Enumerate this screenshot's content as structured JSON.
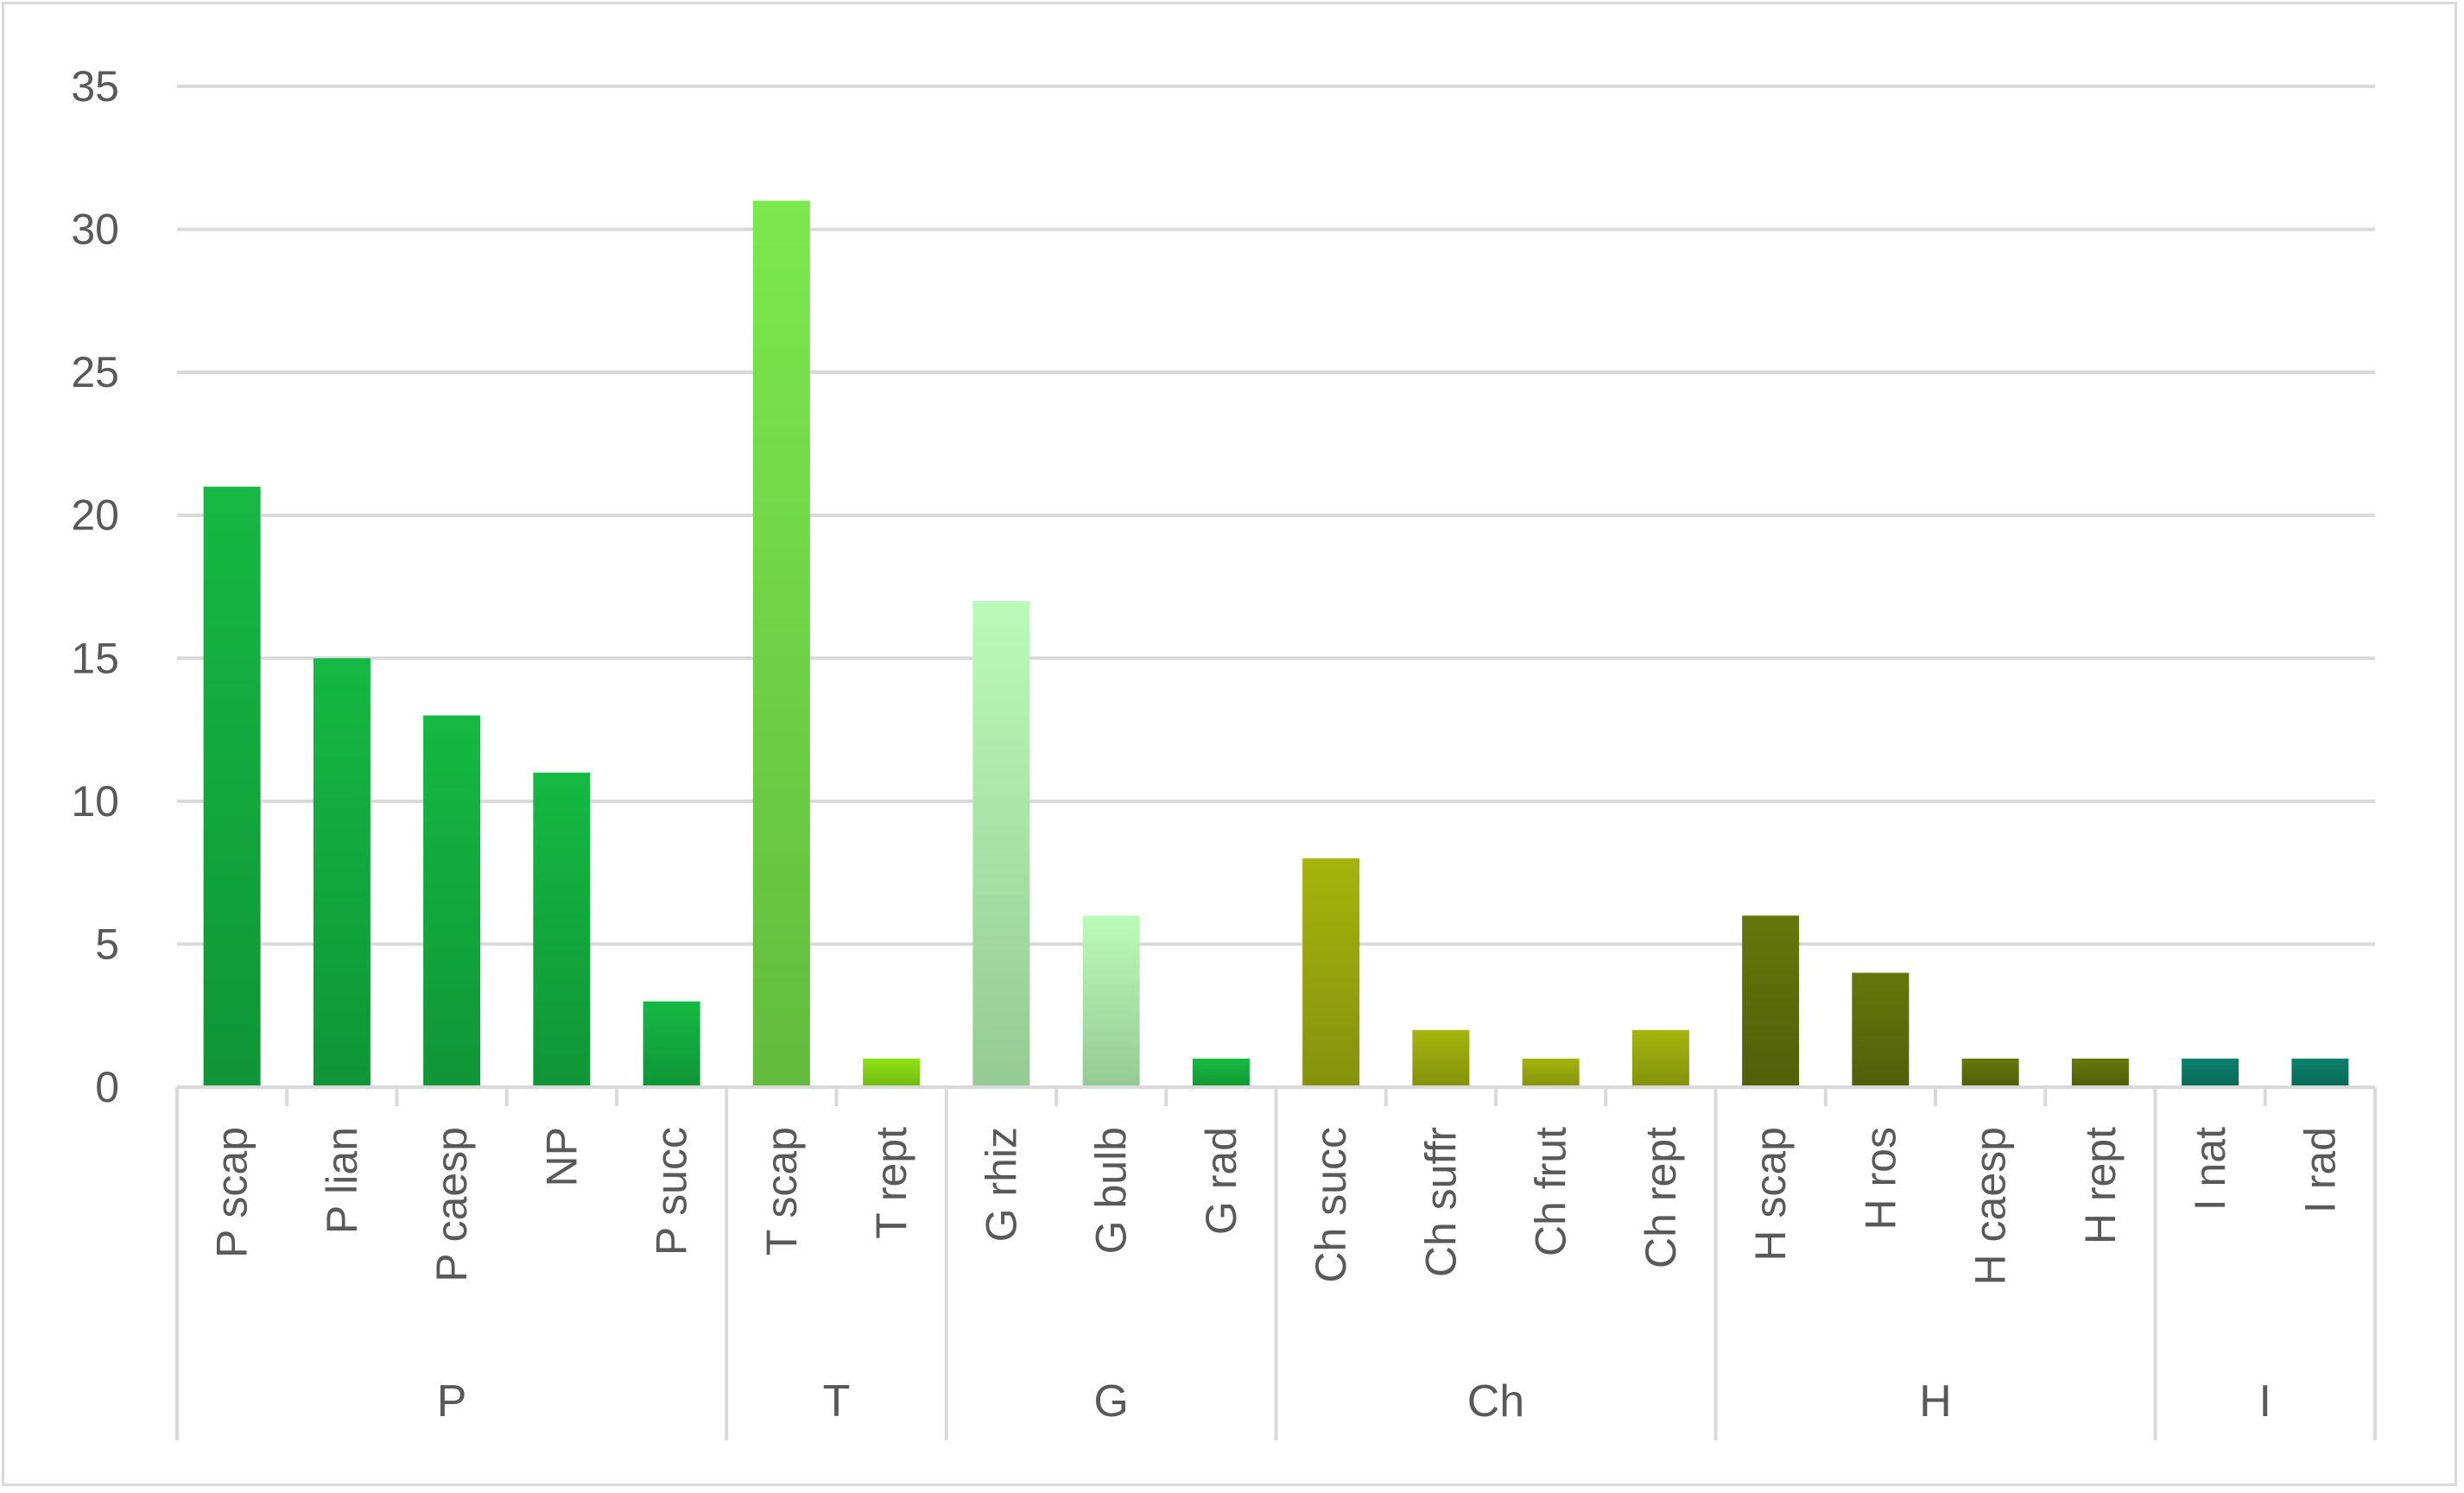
{
  "chart_data": {
    "type": "bar",
    "title": "",
    "xlabel": "",
    "ylabel": "",
    "ylim": [
      0,
      35
    ],
    "y_ticks": [
      0,
      5,
      10,
      15,
      20,
      25,
      30,
      35
    ],
    "grid": true,
    "legend": "none",
    "categories": [
      "P scap",
      "P lian",
      "P caesp",
      "NP",
      "P succ",
      "T scap",
      "T rept",
      "G rhiz",
      "G bulb",
      "G rad",
      "Ch succ",
      "Ch suffr",
      "Ch frut",
      "Ch rept",
      "H scap",
      "H ros",
      "H caesp",
      "H rept",
      "I nat",
      "I rad"
    ],
    "values": [
      21,
      15,
      13,
      11,
      3,
      31,
      1,
      17,
      6,
      1,
      8,
      2,
      1,
      2,
      6,
      4,
      1,
      1,
      1,
      1
    ],
    "bar_colors": [
      "#12a53c",
      "#12a53c",
      "#12a53c",
      "#12a53c",
      "#12a53c",
      "#6ed045",
      "#7fcc12",
      "#a6e0a4",
      "#a6e0a4",
      "#14a83a",
      "#92a20c",
      "#92a20c",
      "#92a20c",
      "#92a20c",
      "#5a6a0a",
      "#5a6a0a",
      "#5a6a0a",
      "#5a6a0a",
      "#0b7460",
      "#0b7460"
    ],
    "groups": [
      {
        "label": "P",
        "count": 5
      },
      {
        "label": "T",
        "count": 2
      },
      {
        "label": "G",
        "count": 3
      },
      {
        "label": "Ch",
        "count": 4
      },
      {
        "label": "H",
        "count": 4
      },
      {
        "label": "I",
        "count": 2
      }
    ],
    "colors": {
      "grid": "#d9d9d9",
      "text": "#595959"
    }
  }
}
